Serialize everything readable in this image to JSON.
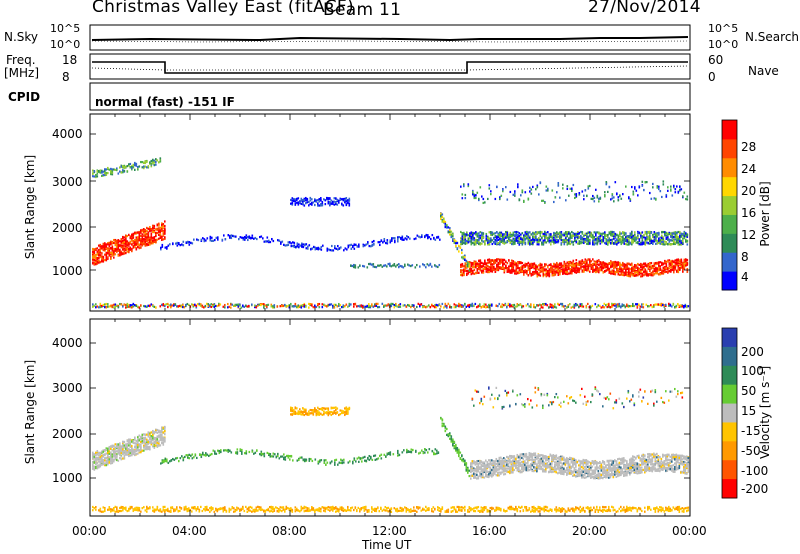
{
  "header": {
    "station": "Christmas Valley East (fitACF)",
    "beam": "Beam 11",
    "date": "27/Nov/2014"
  },
  "status_panels": {
    "nsky_label": "N.Sky",
    "nsky_ticks": [
      "10^5",
      "10^0"
    ],
    "nsearch_label": "N.Search",
    "nsearch_ticks": [
      "10^5",
      "10^0"
    ],
    "freq_label": "Freq.",
    "freq_unit": "[MHz]",
    "freq_ticks": [
      "18",
      "8"
    ],
    "nave_label": "Nave",
    "nave_ticks": [
      "60",
      "0"
    ],
    "cpid_label": "CPID",
    "cpid_text": "normal (fast) -151 IF"
  },
  "chart_data": [
    {
      "type": "heatmap",
      "name": "power",
      "ylabel": "Slant Range [km]",
      "ylim": [
        180,
        4500
      ],
      "y_ticks": [
        "4000",
        "3000",
        "2000",
        "1000"
      ],
      "colorbar_label": "Power [dB]",
      "colorbar_ticks": [
        "28",
        "24",
        "20",
        "16",
        "12",
        "8",
        "4"
      ],
      "colors": [
        "#0000ff",
        "#3366cc",
        "#2e8b57",
        "#4daf4a",
        "#9acd32",
        "#ffd700",
        "#ff8c00",
        "#ff4500",
        "#ff0000"
      ]
    },
    {
      "type": "heatmap",
      "name": "velocity",
      "ylabel": "Slant Range [km]",
      "ylim": [
        180,
        4500
      ],
      "y_ticks": [
        "4000",
        "3000",
        "2000",
        "1000"
      ],
      "colorbar_label": "Velocity [m s⁻¹]",
      "colorbar_ticks": [
        "200",
        "100",
        "50",
        "15",
        "-15",
        "-50",
        "-100",
        "-200"
      ],
      "colors": [
        "#2a3fb0",
        "#2f6e8e",
        "#2e8b57",
        "#66cc33",
        "#bdbdbd",
        "#ffc400",
        "#ff9900",
        "#ff5500",
        "#ff0000"
      ]
    }
  ],
  "time_axis": {
    "label": "Time UT",
    "ticks": [
      "00:00",
      "04:00",
      "08:00",
      "12:00",
      "16:00",
      "20:00",
      "00:00"
    ]
  }
}
